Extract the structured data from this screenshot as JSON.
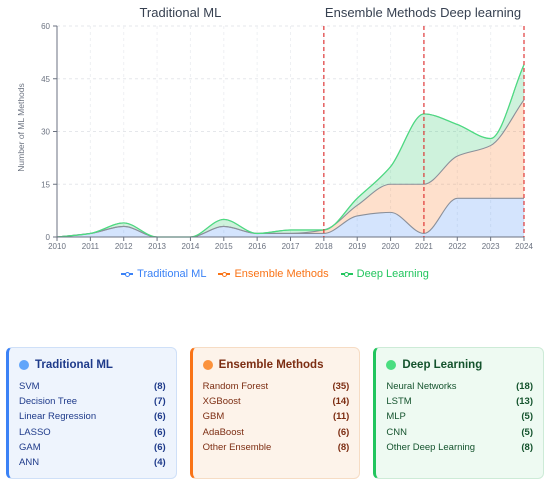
{
  "chart_data": {
    "type": "area",
    "stacked": true,
    "x": [
      2010,
      2011,
      2012,
      2013,
      2014,
      2015,
      2016,
      2017,
      2018,
      2019,
      2020,
      2021,
      2022,
      2023,
      2024
    ],
    "series": [
      {
        "name": "Traditional ML",
        "color": "#3b82f6",
        "values": [
          0,
          1,
          3,
          0,
          0,
          3,
          1,
          1,
          1,
          6,
          7,
          1,
          11,
          11,
          11
        ]
      },
      {
        "name": "Ensemble Methods",
        "color": "#f97316",
        "values": [
          0,
          0,
          0,
          0,
          0,
          0,
          0,
          0,
          1,
          3,
          8,
          14,
          12,
          15,
          28
        ]
      },
      {
        "name": "Deep Learning",
        "color": "#22c55e",
        "values": [
          0,
          0,
          1,
          0,
          0,
          2,
          0,
          1,
          0,
          2,
          5,
          20,
          9,
          2,
          10
        ]
      }
    ],
    "ylabel": "Number of ML Methods",
    "ylim": [
      0,
      60
    ],
    "yticks": [
      0,
      15,
      30,
      45,
      60
    ],
    "grid": true,
    "legend_position": "bottom",
    "era_labels": [
      {
        "text": "Traditional ML",
        "at": 2013.7
      },
      {
        "text": "Ensemble Methods",
        "at": 2019.7
      },
      {
        "text": "Deep learning",
        "at": 2022.7
      }
    ],
    "era_dividers": [
      2018,
      2021,
      2024
    ]
  },
  "cards": [
    {
      "title": "Traditional ML",
      "color": "#3b82f6",
      "items": [
        {
          "name": "SVM",
          "count": "(8)"
        },
        {
          "name": "Decision Tree",
          "count": "(7)"
        },
        {
          "name": "Linear Regression",
          "count": "(6)"
        },
        {
          "name": "LASSO",
          "count": "(6)"
        },
        {
          "name": "GAM",
          "count": "(6)"
        },
        {
          "name": "ANN",
          "count": "(4)"
        }
      ]
    },
    {
      "title": "Ensemble Methods",
      "color": "#f97316",
      "items": [
        {
          "name": "Random Forest",
          "count": "(35)"
        },
        {
          "name": "XGBoost",
          "count": "(14)"
        },
        {
          "name": "GBM",
          "count": "(11)"
        },
        {
          "name": "AdaBoost",
          "count": "(6)"
        },
        {
          "name": "Other Ensemble",
          "count": "(8)"
        }
      ]
    },
    {
      "title": "Deep Learning",
      "color": "#22c55e",
      "items": [
        {
          "name": "Neural Networks",
          "count": "(18)"
        },
        {
          "name": "LSTM",
          "count": "(13)"
        },
        {
          "name": "MLP",
          "count": "(5)"
        },
        {
          "name": "CNN",
          "count": "(5)"
        },
        {
          "name": "Other Deep Learning",
          "count": "(8)"
        }
      ]
    }
  ]
}
